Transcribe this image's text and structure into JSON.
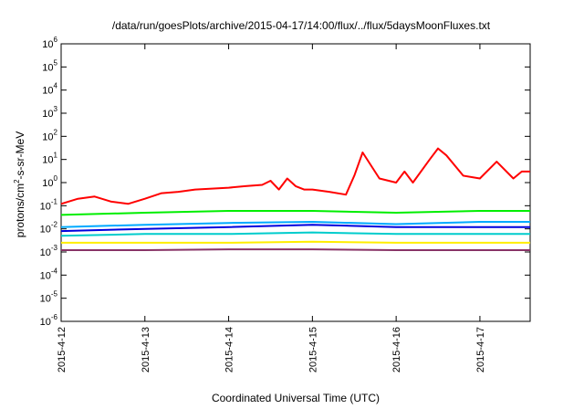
{
  "chart_data": {
    "type": "line",
    "title": "/data/run/goesPlots/archive/2015-04-17/14:00/flux/../flux/5daysMoonFluxes.txt",
    "xlabel": "Coordinated Universal Time (UTC)",
    "ylabel_parts": {
      "base": "protons/cm",
      "sup": "2",
      "rest": "-s-sr-MeV"
    },
    "y_scale": "log",
    "ylim": [
      1e-06,
      1000000.0
    ],
    "y_ticks": [
      {
        "value": 1e-06,
        "base": "10",
        "exp": "-6"
      },
      {
        "value": 1e-05,
        "base": "10",
        "exp": "-5"
      },
      {
        "value": 0.0001,
        "base": "10",
        "exp": "-4"
      },
      {
        "value": 0.001,
        "base": "10",
        "exp": "-3"
      },
      {
        "value": 0.01,
        "base": "10",
        "exp": "-2"
      },
      {
        "value": 0.1,
        "base": "10",
        "exp": "-1"
      },
      {
        "value": 1.0,
        "base": "10",
        "exp": "0"
      },
      {
        "value": 10.0,
        "base": "10",
        "exp": "1"
      },
      {
        "value": 100.0,
        "base": "10",
        "exp": "2"
      },
      {
        "value": 1000.0,
        "base": "10",
        "exp": "3"
      },
      {
        "value": 10000.0,
        "base": "10",
        "exp": "4"
      },
      {
        "value": 100000.0,
        "base": "10",
        "exp": "5"
      },
      {
        "value": 1000000.0,
        "base": "10",
        "exp": "6"
      }
    ],
    "x_ticks": [
      "2015-4-12",
      "2015-4-13",
      "2015-4-14",
      "2015-4-15",
      "2015-4-16",
      "2015-4-17"
    ],
    "x_range_days": [
      0,
      5.6
    ],
    "grid": false,
    "legend": "none",
    "series": [
      {
        "color": "#ff0000",
        "x": [
          0,
          0.2,
          0.4,
          0.6,
          0.8,
          1.0,
          1.2,
          1.4,
          1.6,
          1.8,
          2.0,
          2.2,
          2.4,
          2.5,
          2.6,
          2.7,
          2.8,
          2.9,
          3.0,
          3.2,
          3.4,
          3.5,
          3.6,
          3.8,
          4.0,
          4.1,
          4.2,
          4.4,
          4.5,
          4.6,
          4.8,
          5.0,
          5.2,
          5.4,
          5.5,
          5.6
        ],
        "y": [
          0.12,
          0.2,
          0.25,
          0.15,
          0.12,
          0.2,
          0.35,
          0.4,
          0.5,
          0.55,
          0.6,
          0.7,
          0.8,
          1.2,
          0.5,
          1.5,
          0.7,
          0.5,
          0.5,
          0.4,
          0.3,
          2.0,
          20,
          1.5,
          1.0,
          3.0,
          1.0,
          10,
          30,
          15,
          2.0,
          1.5,
          8.0,
          1.5,
          3.0,
          3.0
        ]
      },
      {
        "color": "#00ee00",
        "x": [
          0,
          1,
          2,
          3,
          4,
          5,
          5.6
        ],
        "y": [
          0.04,
          0.05,
          0.06,
          0.06,
          0.05,
          0.06,
          0.06
        ]
      },
      {
        "color": "#00aaff",
        "x": [
          0,
          1,
          2,
          3,
          4,
          5,
          5.6
        ],
        "y": [
          0.012,
          0.015,
          0.018,
          0.02,
          0.016,
          0.02,
          0.02
        ]
      },
      {
        "color": "#0000dd",
        "x": [
          0,
          1,
          2,
          3,
          4,
          5,
          5.6
        ],
        "y": [
          0.008,
          0.01,
          0.012,
          0.015,
          0.012,
          0.012,
          0.012
        ]
      },
      {
        "color": "#00cccc",
        "x": [
          0,
          1,
          2,
          3,
          4,
          5,
          5.6
        ],
        "y": [
          0.005,
          0.006,
          0.006,
          0.007,
          0.006,
          0.006,
          0.006
        ]
      },
      {
        "color": "#ffee00",
        "x": [
          0,
          1,
          2,
          3,
          4,
          5,
          5.6
        ],
        "y": [
          0.0025,
          0.0025,
          0.0025,
          0.0028,
          0.0025,
          0.0025,
          0.0025
        ]
      },
      {
        "color": "#883366",
        "x": [
          0,
          1,
          2,
          3,
          4,
          5,
          5.6
        ],
        "y": [
          0.0012,
          0.0012,
          0.0013,
          0.0013,
          0.0012,
          0.0012,
          0.0012
        ]
      }
    ]
  }
}
